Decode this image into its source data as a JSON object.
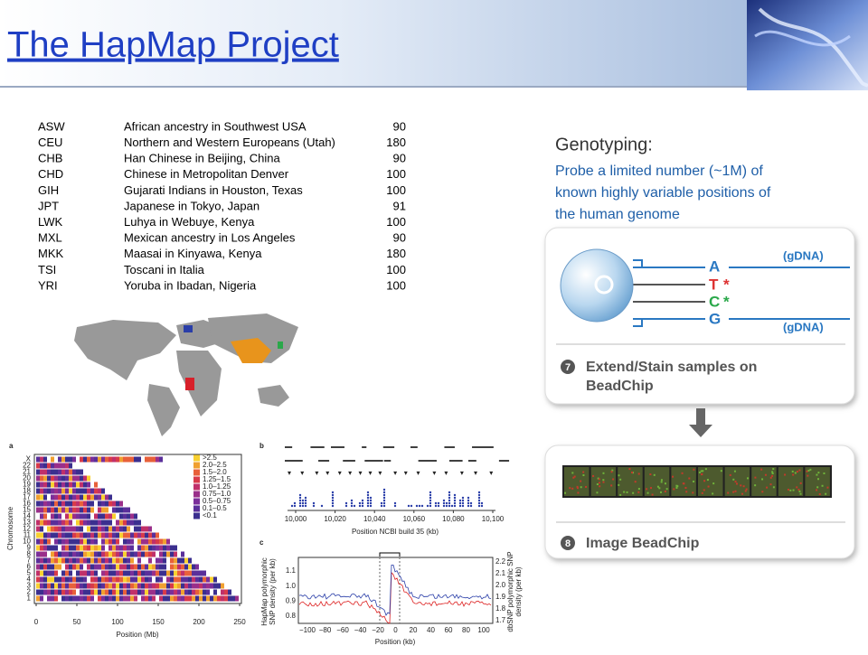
{
  "header": {
    "title": "The HapMap Project"
  },
  "table": {
    "rows": [
      [
        "ASW",
        "African ancestry in Southwest USA",
        "90"
      ],
      [
        "CEU",
        "Northern and Western Europeans (Utah)",
        "180"
      ],
      [
        "CHB",
        "Han Chinese in Beijing, China",
        "90"
      ],
      [
        "CHD",
        "Chinese in Metropolitan Denver",
        "100"
      ],
      [
        "GIH",
        "Gujarati Indians in Houston, Texas",
        "100"
      ],
      [
        "JPT",
        "Japanese in Tokyo, Japan",
        "91"
      ],
      [
        "LWK",
        "Luhya in Webuye, Kenya",
        "100"
      ],
      [
        "MXL",
        "Mexican ancestry in Los Angeles",
        "90"
      ],
      [
        "MKK",
        "Maasai in Kinyawa, Kenya",
        "180"
      ],
      [
        "TSI",
        "Toscani in Italia",
        "100"
      ],
      [
        "YRI",
        "Yoruba in Ibadan, Nigeria",
        "100"
      ]
    ]
  },
  "genotyping": {
    "heading": "Genotyping:",
    "lines": [
      "Probe a limited number (~1M) of",
      "known highly variable positions of",
      "the human genome"
    ]
  },
  "diagram": {
    "bases": [
      "A",
      "T",
      "C",
      "G"
    ],
    "stars": [
      "*",
      "*"
    ],
    "gdna": [
      "(gDNA)",
      "(gDNA)"
    ],
    "step7": {
      "number": "7",
      "lines": [
        "Extend/Stain samples on",
        "BeadChip"
      ]
    },
    "step8": {
      "number": "8",
      "text": "Image BeadChip"
    }
  },
  "figure": {
    "panel_a": {
      "letter": "a",
      "chromosomes": [
        "X",
        "22",
        "21",
        "20",
        "19",
        "18",
        "17",
        "16",
        "15",
        "14",
        "13",
        "12",
        "11",
        "10",
        "9",
        "8",
        "7",
        "6",
        "5",
        "4",
        "3",
        "2",
        "1"
      ],
      "legend": [
        ">2.5",
        "2.0–2.5",
        "1.5–2.0",
        "1.25–1.5",
        "1.0–1.25",
        "0.75–1.0",
        "0.5–0.75",
        "0.1–0.5",
        "<0.1"
      ],
      "xticks": [
        "0",
        "50",
        "100",
        "150",
        "200",
        "250"
      ],
      "xlabel": "Position (Mb)",
      "ylabel": "Chromosome"
    },
    "panel_b": {
      "letter": "b",
      "xticks": [
        "10,000",
        "10,020",
        "10,040",
        "10,060",
        "10,080",
        "10,100"
      ],
      "xlabel": "Position NCBI build 35 (kb)"
    },
    "panel_c": {
      "letter": "c",
      "yticks_left": [
        "1.1",
        "1.0",
        "0.9",
        "0.8"
      ],
      "yticks_right": [
        "2.2",
        "2.1",
        "2.0",
        "1.9",
        "1.8",
        "1.7"
      ],
      "xticks": [
        "−100",
        "−80",
        "−60",
        "−40",
        "−20",
        "0",
        "20",
        "40",
        "60",
        "80",
        "100"
      ],
      "xlabel": "Position (kb)",
      "ylabel_left": [
        "HapMap polymorphic",
        "SNP density (per kb)"
      ],
      "ylabel_right": [
        "dbSNP polymorphic SNP",
        "density (per kb)"
      ]
    }
  }
}
